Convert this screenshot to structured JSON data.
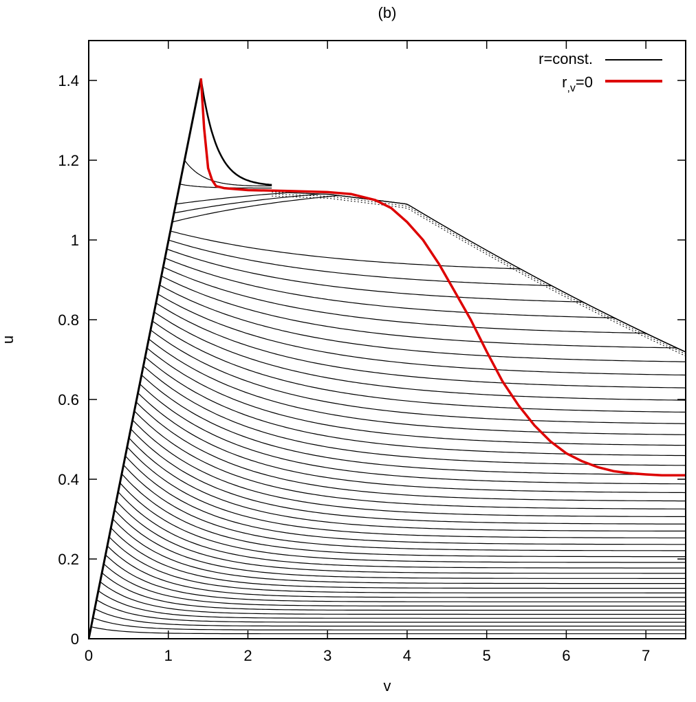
{
  "chart_data": {
    "type": "line",
    "title": "(b)",
    "xlabel": "v",
    "ylabel": "u",
    "xlim": [
      0,
      7.5
    ],
    "ylim": [
      0,
      1.5
    ],
    "x_ticks": [
      "0",
      "1",
      "2",
      "3",
      "4",
      "5",
      "6",
      "7"
    ],
    "y_ticks": [
      "0",
      "0.2",
      "0.4",
      "0.6",
      "0.8",
      "1",
      "1.2",
      "1.4"
    ],
    "x_tick_values": [
      0,
      1,
      2,
      3,
      4,
      5,
      6,
      7
    ],
    "y_tick_values": [
      0,
      0.2,
      0.4,
      0.6,
      0.8,
      1.0,
      1.2,
      1.4
    ],
    "grid": false,
    "legend_position": "top-right",
    "legend": [
      {
        "label": "r=const.",
        "color": "#000000"
      },
      {
        "label_main": "r",
        "label_sub": ",v",
        "label_tail": "=0",
        "color": "#dd0000"
      }
    ],
    "peak": {
      "x": 1.41,
      "y": 1.405
    },
    "contour_count": 48,
    "series": [
      {
        "x": [
          1.41,
          1.45,
          1.5,
          1.55,
          1.6,
          1.7,
          2.0,
          2.5,
          3.0,
          3.3,
          3.6,
          3.8,
          4.0,
          4.2,
          4.4,
          4.6,
          4.8,
          5.0,
          5.2,
          5.4,
          5.6,
          5.8,
          6.0,
          6.2,
          6.4,
          6.6,
          6.8,
          7.0,
          7.2,
          7.5
        ],
        "y": [
          1.405,
          1.28,
          1.18,
          1.15,
          1.135,
          1.13,
          1.125,
          1.123,
          1.12,
          1.115,
          1.1,
          1.08,
          1.045,
          1.0,
          0.94,
          0.87,
          0.8,
          0.72,
          0.645,
          0.585,
          0.535,
          0.495,
          0.465,
          0.445,
          0.43,
          0.42,
          0.415,
          0.412,
          0.41,
          0.41
        ],
        "color": "#dd0000"
      }
    ]
  }
}
